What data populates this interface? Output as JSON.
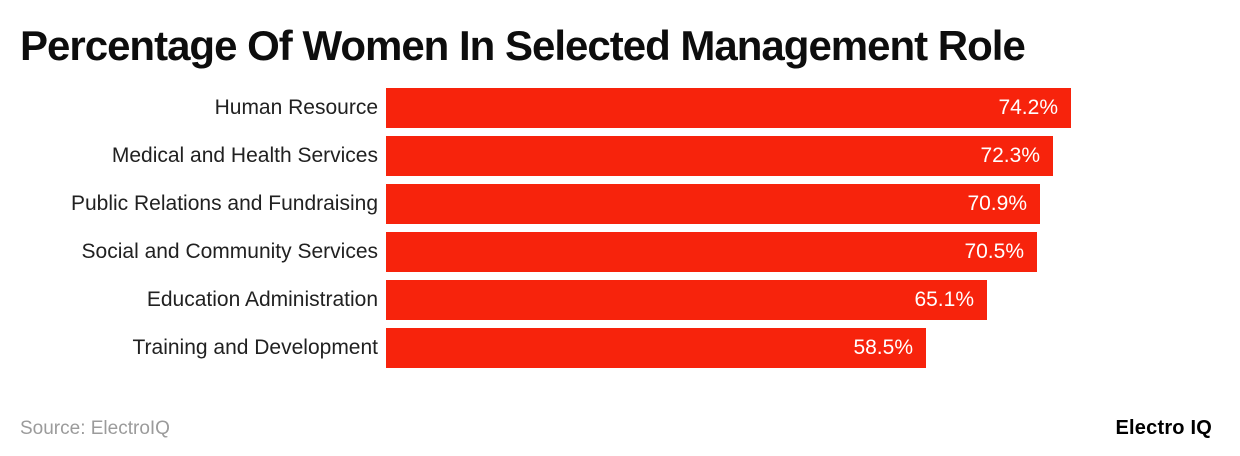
{
  "chart_data": {
    "type": "bar",
    "orientation": "horizontal",
    "title": "Percentage Of Women In Selected Management Role",
    "categories": [
      "Human Resource",
      "Medical and Health Services",
      "Public Relations and Fundraising",
      "Social and Community Services",
      "Education Administration",
      "Training and Development"
    ],
    "values": [
      74.2,
      72.3,
      70.9,
      70.5,
      65.1,
      58.5
    ],
    "value_labels": [
      "74.2%",
      "72.3%",
      "70.9%",
      "70.5%",
      "65.1%",
      "58.5%"
    ],
    "xlabel": "",
    "ylabel": "",
    "xlim": [
      0,
      80
    ],
    "grid": false,
    "legend": false,
    "axis_visible": false,
    "value_label_position": "inside-end"
  },
  "footer": {
    "source": "Source: ElectroIQ",
    "brand": "Electro IQ"
  },
  "colors": {
    "bar": "#f7230c",
    "title": "#0d0d0d",
    "category_label": "#212121",
    "value_label": "#ffffff",
    "source": "#9b9b9b",
    "brand": "#000000",
    "background": "#ffffff"
  }
}
